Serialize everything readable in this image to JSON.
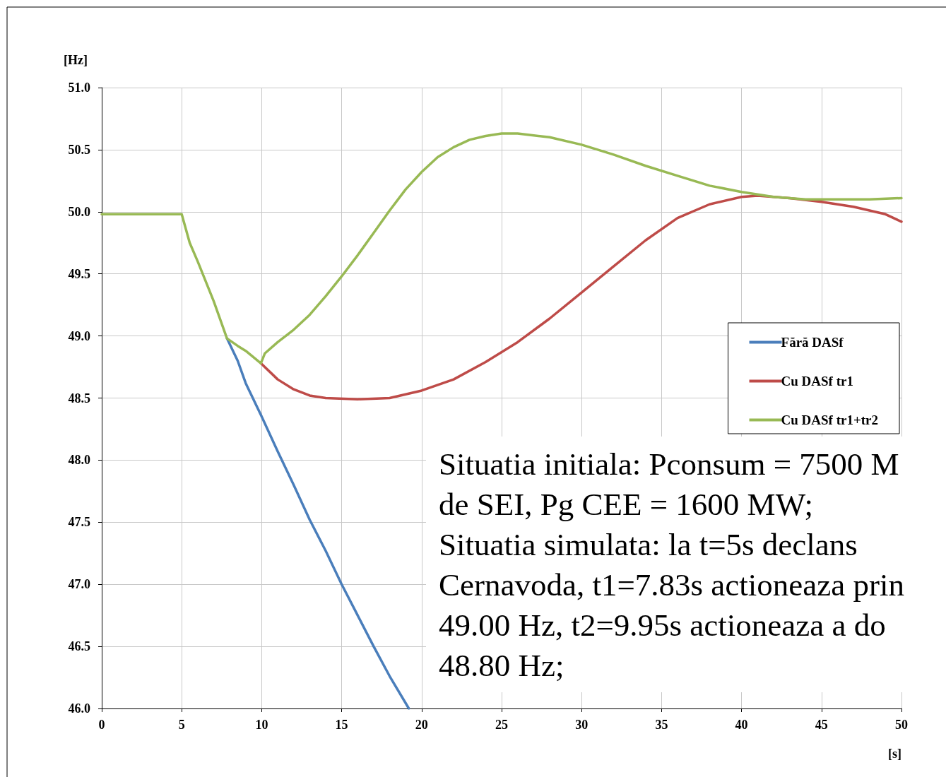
{
  "chart_data": {
    "type": "line",
    "xlabel": "[s]",
    "ylabel": "[Hz]",
    "xlim": [
      0,
      50
    ],
    "xticks": [
      0,
      5,
      10,
      15,
      20,
      25,
      30,
      35,
      40,
      45,
      50
    ],
    "ylim": [
      46,
      51
    ],
    "yticks": [
      {
        "value": 46,
        "label": "46.0"
      },
      {
        "value": 46.5,
        "label": "46.5"
      },
      {
        "value": 47,
        "label": "47.0"
      },
      {
        "value": 47.5,
        "label": "47.5"
      },
      {
        "value": 48,
        "label": "48.0"
      },
      {
        "value": 48.5,
        "label": "48.5"
      },
      {
        "value": 49,
        "label": "49.0"
      },
      {
        "value": 49.5,
        "label": "49.5"
      },
      {
        "value": 50,
        "label": "50.0"
      },
      {
        "value": 50.5,
        "label": "50.5"
      },
      {
        "value": 51,
        "label": "51.0"
      }
    ],
    "grid": true,
    "legend": "right",
    "marker": "none",
    "line_style": "solid",
    "series": [
      {
        "name": "Fără DASf",
        "color": "#4a7ebb",
        "x": [
          7.83,
          8.5,
          9,
          10,
          11,
          12,
          13,
          14,
          15,
          16,
          17,
          18,
          19.2
        ],
        "values": [
          48.98,
          48.8,
          48.62,
          48.35,
          48.07,
          47.8,
          47.52,
          47.27,
          47.0,
          46.75,
          46.5,
          46.26,
          46.0
        ]
      },
      {
        "name": "Cu DASf tr1",
        "color": "#be4b48",
        "x": [
          9.95,
          11,
          12,
          13,
          14,
          16,
          18,
          20,
          22,
          24,
          26,
          28,
          30,
          32,
          34,
          36,
          38,
          40,
          41,
          43,
          45,
          47,
          49,
          50
        ],
        "values": [
          48.78,
          48.65,
          48.57,
          48.52,
          48.5,
          48.49,
          48.5,
          48.56,
          48.65,
          48.79,
          48.95,
          49.14,
          49.35,
          49.56,
          49.77,
          49.95,
          50.06,
          50.12,
          50.13,
          50.11,
          50.08,
          50.04,
          49.98,
          49.92
        ]
      },
      {
        "name": "Cu DASf tr1+tr2",
        "color": "#98b954",
        "x": [
          0,
          5,
          5.5,
          6,
          7,
          7.83,
          8.5,
          9,
          9.95,
          10.2,
          11,
          12,
          13,
          14,
          15,
          16,
          17,
          18,
          19,
          20,
          21,
          22,
          23,
          24,
          25,
          26,
          28,
          30,
          32,
          34,
          36,
          38,
          40,
          42,
          44,
          46,
          48,
          50
        ],
        "values": [
          49.98,
          49.98,
          49.75,
          49.6,
          49.28,
          48.98,
          48.92,
          48.88,
          48.78,
          48.86,
          48.95,
          49.05,
          49.17,
          49.32,
          49.48,
          49.65,
          49.83,
          50.01,
          50.18,
          50.32,
          50.44,
          50.52,
          50.58,
          50.61,
          50.63,
          50.63,
          50.6,
          50.54,
          50.46,
          50.37,
          50.29,
          50.21,
          50.16,
          50.12,
          50.1,
          50.1,
          50.1,
          50.11
        ]
      }
    ],
    "annotations": [
      "Situatia initiala: Pconsum = 7500 M\nde SEI, Pg CEE = 1600 MW;\nSituatia simulata: la t=5s declans\nCernavoda, t1=7.83s actioneaza prin\n49.00 Hz, t2=9.95s actioneaza a do\n48.80 Hz;"
    ]
  }
}
